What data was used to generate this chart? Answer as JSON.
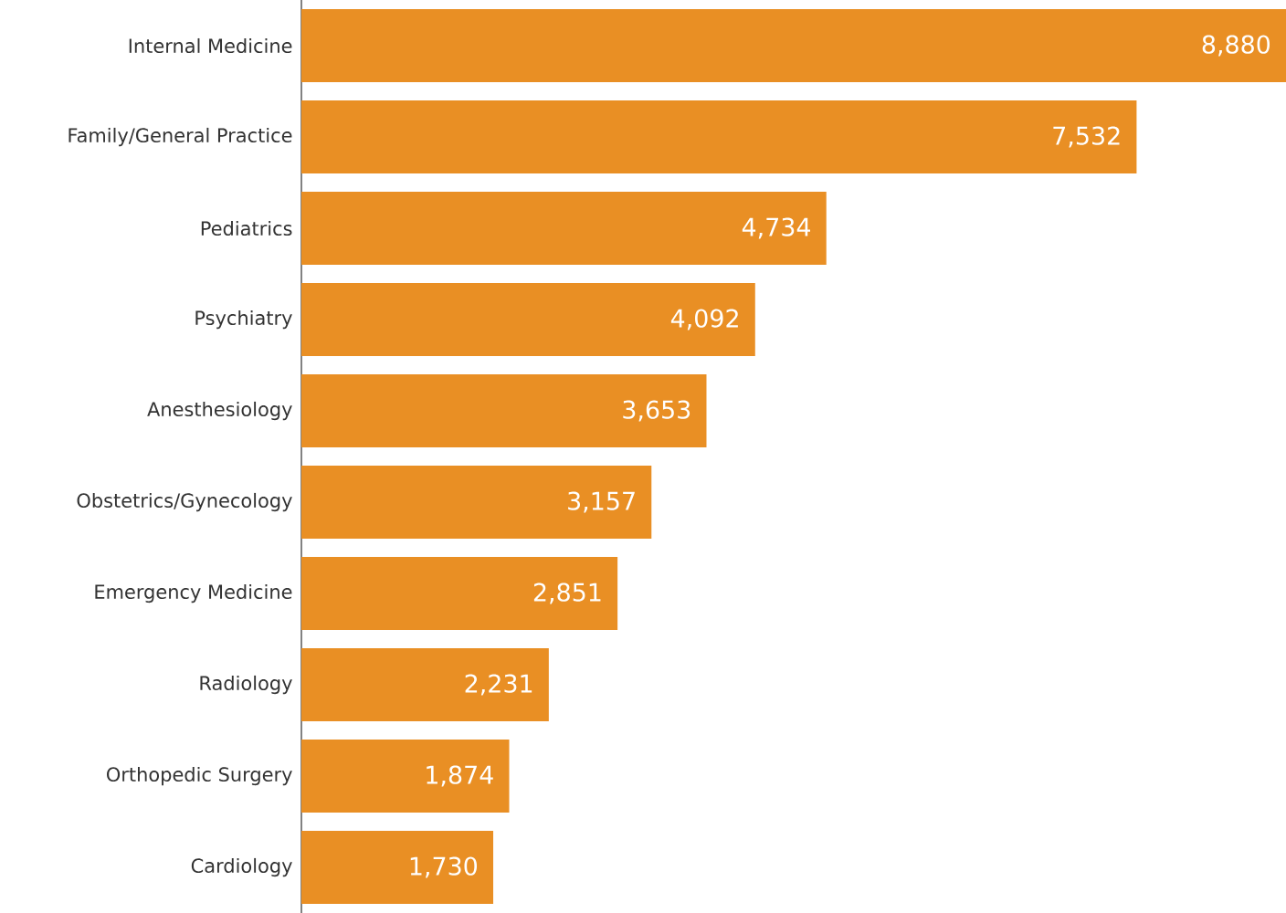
{
  "chart_data": {
    "type": "bar",
    "orientation": "horizontal",
    "color": "#e98f24",
    "categories": [
      "Internal Medicine",
      "Family/General Practice",
      "Pediatrics",
      "Psychiatry",
      "Anesthesiology",
      "Obstetrics/Gynecology",
      "Emergency Medicine",
      "Radiology",
      "Orthopedic Surgery",
      "Cardiology"
    ],
    "values": [
      8880,
      7532,
      4734,
      4092,
      3653,
      3157,
      2851,
      2231,
      1874,
      1730
    ],
    "value_labels": [
      "8,880",
      "7,532",
      "4,734",
      "4,092",
      "3,653",
      "3,157",
      "2,851",
      "2,231",
      "1,874",
      "1,730"
    ]
  }
}
